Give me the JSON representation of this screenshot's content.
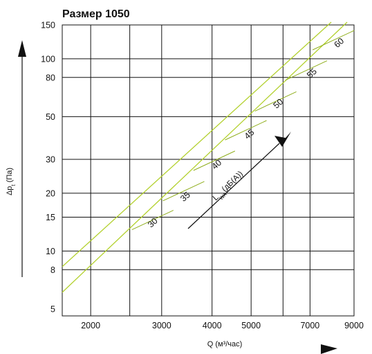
{
  "chart_data": {
    "type": "line",
    "title": "Размер 1050",
    "xlabel": "Q (м³/час)",
    "ylabel": "Δpt (Па)",
    "ylabel_main": "Δp",
    "ylabel_sub": "t",
    "ylabel_unit": " (Па)",
    "x_scale": "log",
    "y_scale": "log",
    "xlim": [
      1700,
      9000
    ],
    "ylim": [
      4.6,
      150
    ],
    "x_ticks": [
      2000,
      3000,
      4000,
      5000,
      7000,
      9000
    ],
    "x_tick_labels": [
      "2000",
      "3000",
      "4000",
      "5000",
      "7000",
      "9000"
    ],
    "y_ticks": [
      5,
      8,
      10,
      15,
      20,
      30,
      50,
      80,
      100,
      150
    ],
    "y_tick_labels": [
      "5",
      "8",
      "10",
      "15",
      "20",
      "30",
      "50",
      "80",
      "100",
      "150"
    ],
    "grid": true,
    "series": [
      {
        "points": [
          [
            1700,
            6.1
          ],
          [
            8650,
            155
          ]
        ]
      },
      {
        "points": [
          [
            1700,
            8.3
          ],
          [
            7900,
            155
          ]
        ]
      }
    ],
    "sound_levels": {
      "label_main": "L",
      "label_sub": "WA",
      "label_unit": "(дБ(А))",
      "levels": [
        {
          "label": "30",
          "x": 2850,
          "y": 14.5,
          "label_x": 2880,
          "label_y": 13.7
        },
        {
          "label": "35",
          "x": 3400,
          "y": 20.5,
          "label_x": 3470,
          "label_y": 18.7
        },
        {
          "label": "40",
          "x": 4050,
          "y": 29.5,
          "label_x": 4150,
          "label_y": 27.5
        },
        {
          "label": "45",
          "x": 4850,
          "y": 42.5,
          "label_x": 5000,
          "label_y": 39.5
        },
        {
          "label": "50",
          "x": 5750,
          "y": 60,
          "label_x": 5900,
          "label_y": 57
        },
        {
          "label": "55",
          "x": 6850,
          "y": 87,
          "label_x": 7150,
          "label_y": 82
        },
        {
          "label": "60",
          "x": 8000,
          "y": 125,
          "label_x": 8350,
          "label_y": 118
        }
      ]
    }
  }
}
